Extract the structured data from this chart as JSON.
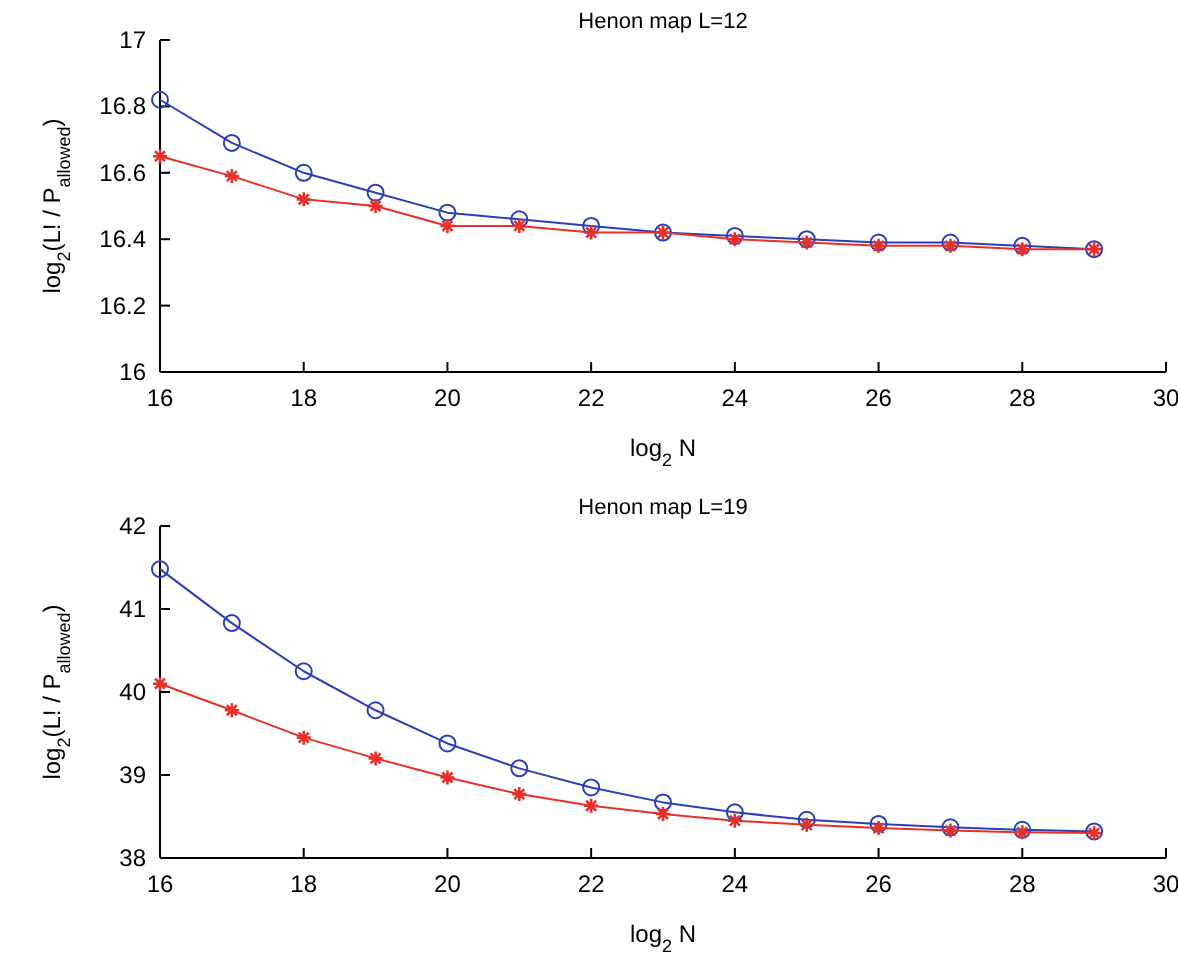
{
  "chart_data": [
    {
      "type": "line",
      "title": "Henon map L=12",
      "xlabel": "log$_{2}$ N",
      "ylabel": "log$_{2}$(L! / P$_{allowed}$)",
      "x": [
        16,
        17,
        18,
        19,
        20,
        21,
        22,
        23,
        24,
        25,
        26,
        27,
        28,
        29
      ],
      "xlim": [
        16,
        30
      ],
      "xticks": [
        16,
        18,
        20,
        22,
        24,
        26,
        28,
        30
      ],
      "ylim": [
        16,
        17
      ],
      "yticks": [
        16,
        16.2,
        16.4,
        16.6,
        16.8,
        17
      ],
      "grid": false,
      "line_style": "solid",
      "series": [
        {
          "color": "#2b3fb5",
          "marker": "circle",
          "values": [
            16.82,
            16.69,
            16.6,
            16.54,
            16.48,
            16.46,
            16.44,
            16.42,
            16.41,
            16.4,
            16.39,
            16.39,
            16.38,
            16.37
          ]
        },
        {
          "color": "#e8302a",
          "marker": "cross",
          "values": [
            16.65,
            16.59,
            16.52,
            16.5,
            16.44,
            16.44,
            16.42,
            16.42,
            16.4,
            16.39,
            16.38,
            16.38,
            16.37,
            16.37
          ]
        }
      ]
    },
    {
      "type": "line",
      "title": "Henon map L=19",
      "xlabel": "log$_{2}$ N",
      "ylabel": "log$_{2}$(L! / P$_{allowed}$)",
      "x": [
        16,
        17,
        18,
        19,
        20,
        21,
        22,
        23,
        24,
        25,
        26,
        27,
        28,
        29
      ],
      "xlim": [
        16,
        30
      ],
      "xticks": [
        16,
        18,
        20,
        22,
        24,
        26,
        28,
        30
      ],
      "ylim": [
        38,
        42
      ],
      "yticks": [
        38,
        39,
        40,
        41,
        42
      ],
      "grid": false,
      "line_style": "solid",
      "series": [
        {
          "color": "#2b3fb5",
          "marker": "circle",
          "values": [
            41.48,
            40.83,
            40.25,
            39.78,
            39.38,
            39.08,
            38.85,
            38.67,
            38.55,
            38.46,
            38.41,
            38.37,
            38.34,
            38.32
          ]
        },
        {
          "color": "#e8302a",
          "marker": "cross",
          "values": [
            40.1,
            39.78,
            39.45,
            39.2,
            38.97,
            38.77,
            38.63,
            38.53,
            38.45,
            38.4,
            38.36,
            38.33,
            38.31,
            38.3
          ]
        }
      ]
    }
  ]
}
